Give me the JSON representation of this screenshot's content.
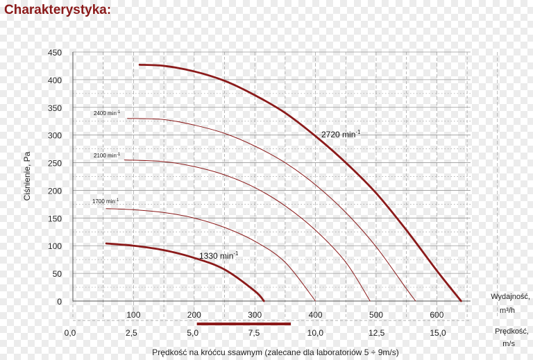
{
  "title": "Charakterystyka:",
  "colors": {
    "curve": "#8b1a1a",
    "grid": "#9a9a9a",
    "axis_text": "#222222"
  },
  "chart_data": {
    "type": "line",
    "title": "Charakterystyka:",
    "ylabel": "Ciśnienie, Pa",
    "xlabel": "Prędkość na króćcu ssawnym (zalecane dla laboratoriów 5 ÷ 9m/s)",
    "x1_label_line1": "Wydajność,",
    "x1_label_line2": "m³/h",
    "x2_label_line1": "Prędkość,",
    "x2_label_line2": "m/s",
    "x_unit": "m³/h",
    "xlim": [
      0,
      700
    ],
    "ylim": [
      0,
      450
    ],
    "grid": true,
    "y_ticks": [
      "0",
      "50",
      "100",
      "150",
      "200",
      "250",
      "300",
      "350",
      "400",
      "450"
    ],
    "x1_ticks": [
      "100",
      "200",
      "300",
      "400",
      "500",
      "600"
    ],
    "x2_ticks": [
      "0,0",
      "2,5",
      "5,0",
      "7,5",
      "10,0",
      "12,5",
      "15,0"
    ],
    "recommended_range_mps": [
      5,
      9
    ],
    "series": [
      {
        "name": "2720 min⁻¹",
        "label": "2720 min",
        "sup": "-1",
        "emphasis": true,
        "x": [
          110,
          150,
          200,
          250,
          300,
          350,
          400,
          450,
          500,
          550,
          600,
          640
        ],
        "y": [
          427,
          425,
          415,
          398,
          372,
          340,
          298,
          250,
          195,
          128,
          55,
          0
        ]
      },
      {
        "name": "2400 min⁻¹",
        "label": "2400 min",
        "sup": "-1",
        "emphasis": false,
        "x": [
          90,
          150,
          200,
          250,
          300,
          350,
          400,
          450,
          500,
          550,
          565
        ],
        "y": [
          330,
          328,
          318,
          303,
          280,
          250,
          210,
          160,
          98,
          22,
          0
        ]
      },
      {
        "name": "2100 min⁻¹",
        "label": "2100 min",
        "sup": "-1",
        "emphasis": false,
        "x": [
          85,
          150,
          200,
          250,
          300,
          350,
          400,
          450,
          490
        ],
        "y": [
          255,
          252,
          243,
          228,
          205,
          172,
          128,
          70,
          0
        ]
      },
      {
        "name": "1700 min⁻¹",
        "label": "1700 min",
        "sup": "-1",
        "emphasis": false,
        "x": [
          55,
          100,
          150,
          200,
          250,
          300,
          350,
          400
        ],
        "y": [
          167,
          165,
          160,
          150,
          133,
          108,
          70,
          0
        ]
      },
      {
        "name": "1330 min⁻¹",
        "label": "1330 min",
        "sup": "-1",
        "emphasis": true,
        "x": [
          55,
          100,
          150,
          200,
          250,
          300,
          315
        ],
        "y": [
          104,
          100,
          92,
          78,
          57,
          18,
          0
        ]
      }
    ]
  }
}
